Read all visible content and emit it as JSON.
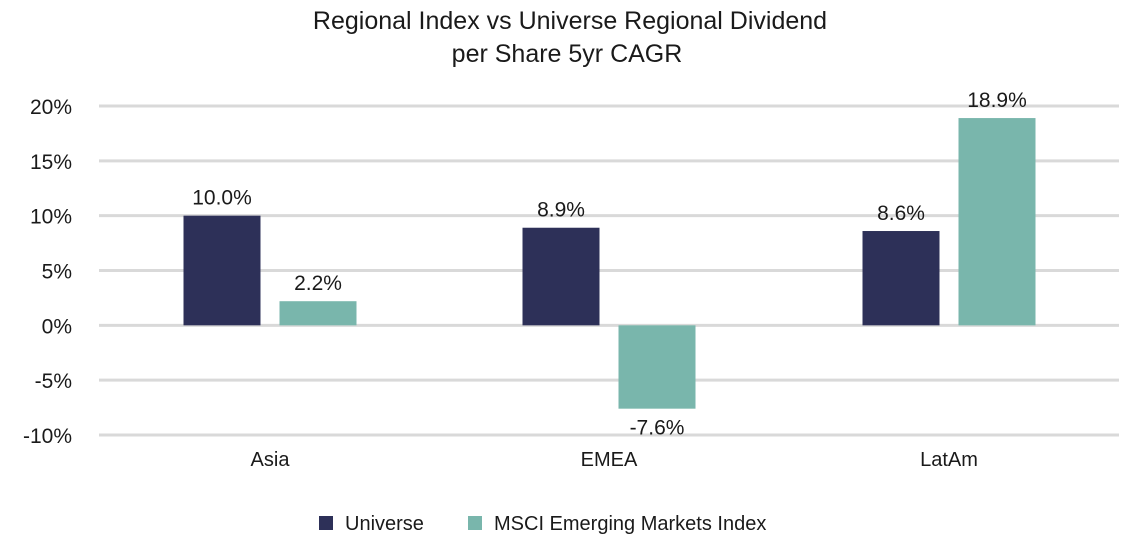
{
  "chart_data": {
    "type": "bar",
    "title_lines": [
      "Regional Index vs Universe Regional Dividend",
      "per Share 5yr CAGR"
    ],
    "categories": [
      "Asia",
      "EMEA",
      "LatAm"
    ],
    "series": [
      {
        "name": "Universe",
        "values": [
          10.0,
          8.9,
          8.6
        ],
        "labels": [
          "10.0%",
          "8.9%",
          "8.6%"
        ],
        "color": "#2d3058"
      },
      {
        "name": "MSCI Emerging Markets Index",
        "values": [
          2.2,
          -7.6,
          18.9
        ],
        "labels": [
          "2.2%",
          "-7.6%",
          "18.9%"
        ],
        "color": "#79b6ac"
      }
    ],
    "y_ticks": [
      20,
      15,
      10,
      5,
      0,
      -5,
      -10
    ],
    "y_tick_labels": [
      "20%",
      "15%",
      "10%",
      "5%",
      "0%",
      "-5%",
      "-10%"
    ],
    "ylim": [
      -10,
      20
    ],
    "grid": true,
    "grid_color": "#d9d9d9",
    "legend_position": "bottom-center"
  }
}
